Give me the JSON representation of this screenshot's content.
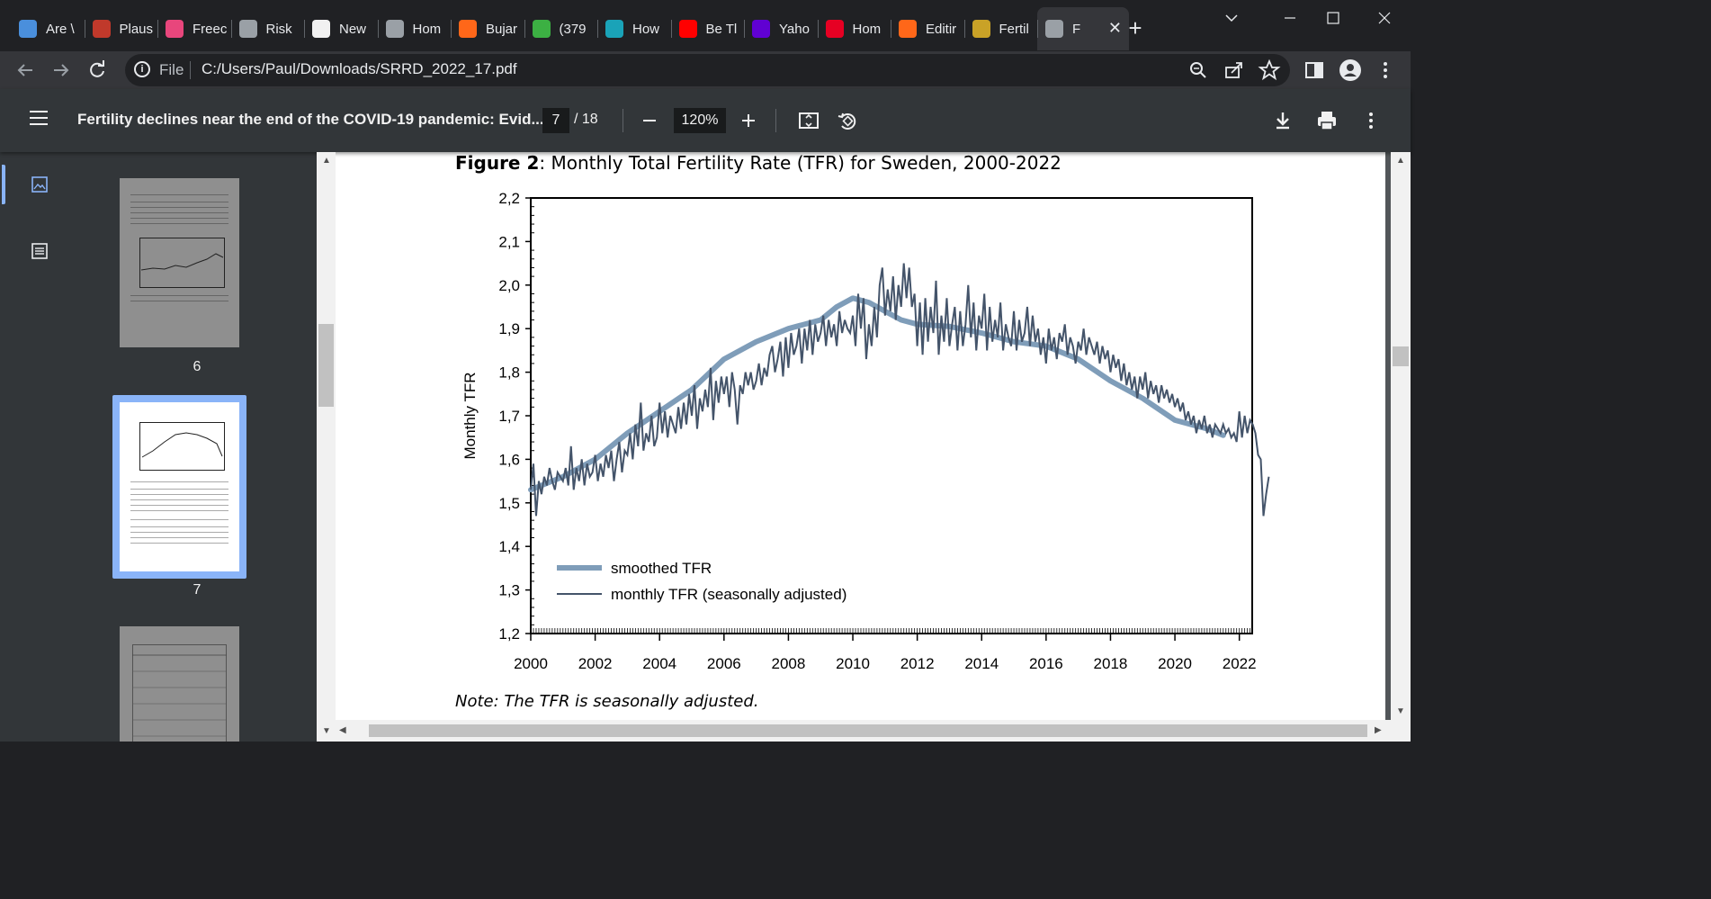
{
  "browser": {
    "tabs": [
      {
        "label": "Are \\",
        "icon": "globe-icon",
        "color": "#4a8fdc"
      },
      {
        "label": "Plaus",
        "icon": "bi-icon",
        "color": "#c0392b"
      },
      {
        "label": "Freec",
        "icon": "pinwheel-icon",
        "color": "#e8467c"
      },
      {
        "label": "Risk",
        "icon": "globe-icon",
        "color": "#9aa0a6"
      },
      {
        "label": "New",
        "icon": "feather-icon",
        "color": "#f1f1f1"
      },
      {
        "label": "Hom",
        "icon": "globe-icon",
        "color": "#9aa0a6"
      },
      {
        "label": "Bujar",
        "icon": "substack-icon",
        "color": "#ff6719"
      },
      {
        "label": "(379",
        "icon": "g-icon",
        "color": "#3cb043"
      },
      {
        "label": "How",
        "icon": "stat-icon",
        "color": "#1aa3b8"
      },
      {
        "label": "Be Tl",
        "icon": "youtube-icon",
        "color": "#ff0000"
      },
      {
        "label": "Yaho",
        "icon": "yahoo-icon",
        "color": "#6001d2"
      },
      {
        "label": "Hom",
        "icon": "pin-icon",
        "color": "#e60023"
      },
      {
        "label": "Editir",
        "icon": "substack-icon",
        "color": "#ff6719"
      },
      {
        "label": "Fertil",
        "icon": "sunburst-icon",
        "color": "#c9a227"
      },
      {
        "label": "F",
        "icon": "globe-icon",
        "color": "#9aa0a6",
        "active": true
      }
    ],
    "new_tab": "+",
    "address": {
      "scheme": "File",
      "url": "C:/Users/Paul/Downloads/SRRD_2022_17.pdf"
    }
  },
  "pdf": {
    "title": "Fertility declines near the end of the COVID-19 pandemic: Evid...",
    "page_current": "7",
    "page_total": "/ 18",
    "zoom": "120%",
    "thumb_numbers": [
      "6",
      "7"
    ]
  },
  "document": {
    "figure_label": "Figure 2",
    "figure_title": ": Monthly Total Fertility Rate (TFR) for Sweden, 2000-2022",
    "note": "Note: The TFR is seasonally adjusted."
  },
  "chart_data": {
    "type": "line",
    "ylabel": "Monthly TFR",
    "xlabel": "",
    "xlim": [
      2000,
      2022.4
    ],
    "ylim": [
      1.2,
      2.2
    ],
    "x_ticks": [
      "2000",
      "2002",
      "2004",
      "2006",
      "2008",
      "2010",
      "2012",
      "2014",
      "2016",
      "2018",
      "2020",
      "2022"
    ],
    "y_ticks": [
      "1,2",
      "1,3",
      "1,4",
      "1,5",
      "1,6",
      "1,7",
      "1,8",
      "1,9",
      "2,0",
      "2,1",
      "2,2"
    ],
    "legend_position": "bottom-left",
    "colors": {
      "smoothed": "#7f9db9",
      "monthly": "#44546a"
    },
    "series": [
      {
        "name": "smoothed TFR",
        "x": [
          2000.0,
          2001.0,
          2002.0,
          2003.0,
          2004.0,
          2005.0,
          2006.0,
          2007.0,
          2008.0,
          2009.0,
          2009.5,
          2010.0,
          2010.5,
          2011.0,
          2011.5,
          2012.0,
          2013.0,
          2014.0,
          2015.0,
          2016.0,
          2017.0,
          2018.0,
          2019.0,
          2020.0,
          2021.0,
          2021.5
        ],
        "y": [
          1.53,
          1.56,
          1.6,
          1.66,
          1.71,
          1.76,
          1.83,
          1.87,
          1.9,
          1.92,
          1.95,
          1.97,
          1.96,
          1.94,
          1.92,
          1.91,
          1.905,
          1.89,
          1.87,
          1.86,
          1.83,
          1.78,
          1.74,
          1.69,
          1.67,
          1.655
        ]
      },
      {
        "name": "monthly TFR (seasonally adjusted)",
        "x_start": 2000.0,
        "x_step": 0.08333,
        "y": [
          1.53,
          1.59,
          1.47,
          1.55,
          1.52,
          1.56,
          1.54,
          1.58,
          1.55,
          1.53,
          1.57,
          1.56,
          1.55,
          1.58,
          1.54,
          1.63,
          1.53,
          1.58,
          1.55,
          1.6,
          1.54,
          1.59,
          1.56,
          1.57,
          1.61,
          1.55,
          1.59,
          1.56,
          1.61,
          1.58,
          1.62,
          1.55,
          1.6,
          1.64,
          1.57,
          1.62,
          1.61,
          1.66,
          1.6,
          1.68,
          1.63,
          1.73,
          1.62,
          1.66,
          1.64,
          1.7,
          1.63,
          1.65,
          1.73,
          1.66,
          1.71,
          1.65,
          1.7,
          1.68,
          1.66,
          1.72,
          1.67,
          1.73,
          1.68,
          1.75,
          1.7,
          1.77,
          1.67,
          1.74,
          1.71,
          1.76,
          1.72,
          1.81,
          1.69,
          1.78,
          1.73,
          1.79,
          1.75,
          1.79,
          1.72,
          1.8,
          1.76,
          1.68,
          1.77,
          1.75,
          1.8,
          1.77,
          1.8,
          1.76,
          1.78,
          1.82,
          1.77,
          1.81,
          1.79,
          1.84,
          1.86,
          1.8,
          1.83,
          1.87,
          1.79,
          1.88,
          1.81,
          1.89,
          1.84,
          1.86,
          1.9,
          1.82,
          1.9,
          1.85,
          1.92,
          1.84,
          1.91,
          1.87,
          1.89,
          1.93,
          1.86,
          1.92,
          1.88,
          1.91,
          1.86,
          1.94,
          1.89,
          1.92,
          1.9,
          1.89,
          1.93,
          1.86,
          1.98,
          1.9,
          1.97,
          1.83,
          1.91,
          1.86,
          1.95,
          1.88,
          2.0,
          2.04,
          1.93,
          1.99,
          1.94,
          2.02,
          1.92,
          2.0,
          1.95,
          2.05,
          1.97,
          2.04,
          1.95,
          1.98,
          1.86,
          1.96,
          1.84,
          1.97,
          1.87,
          1.95,
          1.89,
          2.01,
          1.84,
          1.93,
          1.87,
          1.97,
          1.86,
          1.91,
          1.95,
          1.85,
          1.94,
          1.86,
          1.91,
          2.0,
          1.88,
          1.96,
          1.85,
          1.93,
          1.9,
          1.98,
          1.85,
          1.95,
          1.87,
          1.92,
          1.88,
          1.96,
          1.85,
          1.91,
          1.88,
          1.86,
          1.94,
          1.85,
          1.92,
          1.87,
          1.89,
          1.95,
          1.86,
          1.93,
          1.87,
          1.9,
          1.84,
          1.88,
          1.82,
          1.9,
          1.85,
          1.88,
          1.83,
          1.89,
          1.87,
          1.91,
          1.84,
          1.88,
          1.86,
          1.82,
          1.87,
          1.85,
          1.9,
          1.84,
          1.88,
          1.86,
          1.84,
          1.87,
          1.82,
          1.86,
          1.83,
          1.85,
          1.8,
          1.84,
          1.81,
          1.83,
          1.78,
          1.82,
          1.77,
          1.8,
          1.76,
          1.79,
          1.74,
          1.79,
          1.76,
          1.8,
          1.74,
          1.78,
          1.75,
          1.77,
          1.73,
          1.77,
          1.74,
          1.76,
          1.73,
          1.75,
          1.72,
          1.74,
          1.71,
          1.73,
          1.69,
          1.71,
          1.68,
          1.7,
          1.66,
          1.69,
          1.67,
          1.7,
          1.66,
          1.68,
          1.65,
          1.68,
          1.67,
          1.66,
          1.68,
          1.66,
          1.67,
          1.65,
          1.66,
          1.64,
          1.71,
          1.65,
          1.7,
          1.66,
          1.69,
          1.68,
          1.66,
          1.61,
          1.6,
          1.47,
          1.52,
          1.56
        ]
      }
    ]
  }
}
